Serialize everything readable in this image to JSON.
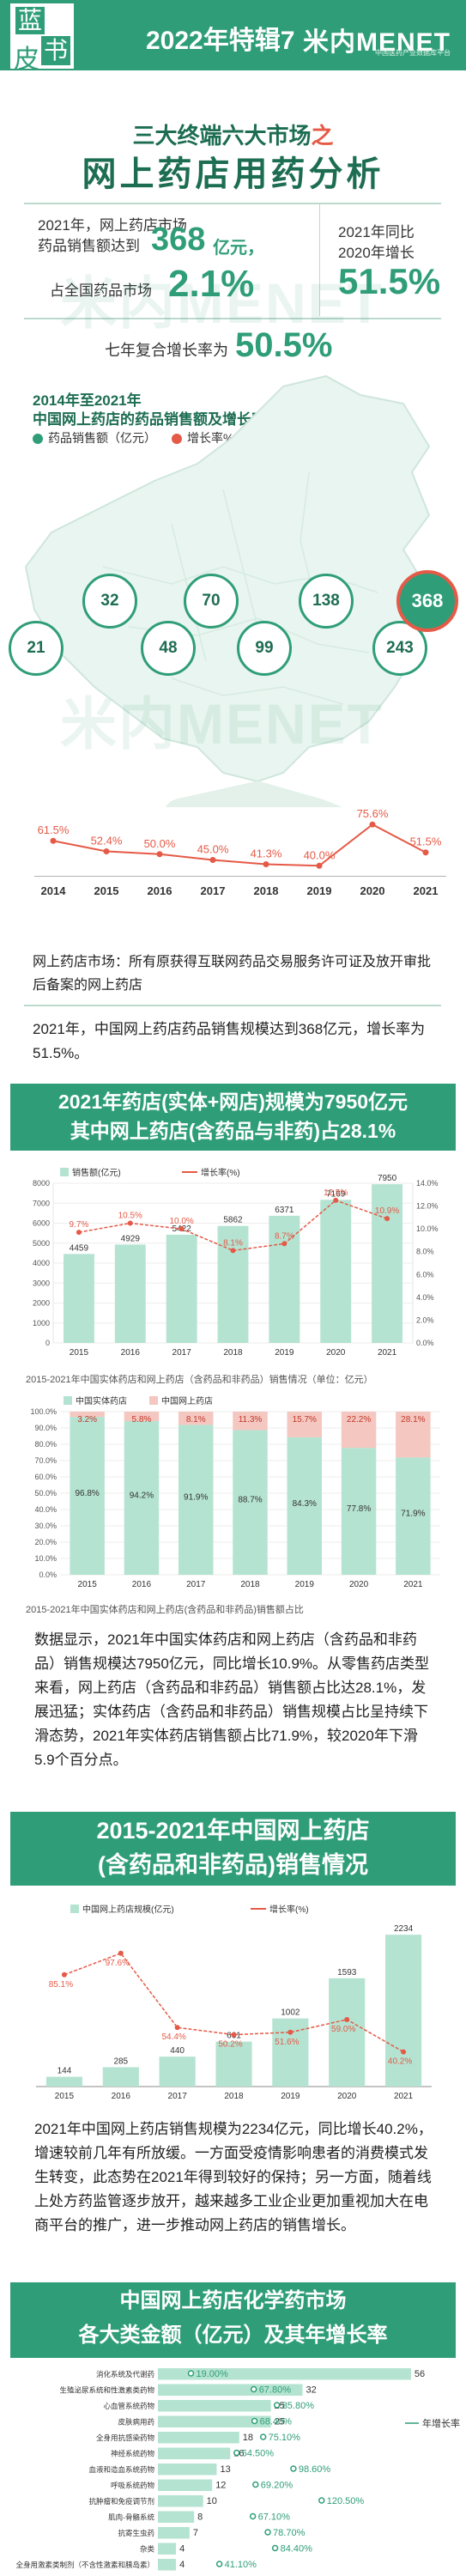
{
  "header": {
    "badge_chars": [
      "蓝",
      "皮",
      "书"
    ],
    "title": "2022年特辑7",
    "logo": "米内MENET",
    "logo_sub": "中国医药产业数据库平台"
  },
  "section1": {
    "title_prefix": "三大终端六大市场",
    "title_suffix": "之",
    "title_main": "网上药店用药分析",
    "stat1_line1": "2021年，网上药店市场",
    "stat1_line2": "药品销售额达到",
    "stat1_value": "368",
    "stat1_unit": "亿元，",
    "stat2_label": "占全国药品市场",
    "stat2_value": "2.1%",
    "stat3_line1": "2021年同比",
    "stat3_line2": "2020年增长",
    "stat3_value": "51.5%",
    "stat4_label": "七年复合增长率为",
    "stat4_value": "50.5%"
  },
  "chart_data": [
    {
      "type": "line",
      "title": "2014年至2021年 中国网上药店的药品销售额及增长率",
      "categories": [
        "2014",
        "2015",
        "2016",
        "2017",
        "2018",
        "2019",
        "2020",
        "2021"
      ],
      "series": [
        {
          "name": "药品销售额（亿元）",
          "values": [
            21,
            32,
            48,
            70,
            99,
            138,
            243,
            368
          ],
          "color": "#2f9e78"
        },
        {
          "name": "增长率%",
          "values": [
            61.5,
            52.4,
            50.0,
            45.0,
            41.3,
            40.0,
            75.6,
            51.5
          ],
          "color": "#e55a47"
        }
      ]
    },
    {
      "type": "bar",
      "title": "2015-2021年中国实体药店和网上药店（含药品和非药品）销售情况（单位：亿元）",
      "categories": [
        "2015",
        "2016",
        "2017",
        "2018",
        "2019",
        "2020",
        "2021"
      ],
      "series": [
        {
          "name": "销售额(亿元)",
          "values": [
            4459,
            4929,
            5422,
            5862,
            6371,
            7169,
            7950
          ],
          "color": "#b5e3d2"
        },
        {
          "name": "增长率(%)",
          "values": [
            9.7,
            10.5,
            10.0,
            8.1,
            8.7,
            12.5,
            10.9
          ],
          "color": "#e55a47"
        }
      ],
      "ylim": [
        0,
        8000
      ],
      "y2lim": [
        0,
        14.0
      ],
      "yticks": [
        "0",
        "1000",
        "2000",
        "3000",
        "4000",
        "5000",
        "6000",
        "7000",
        "8000"
      ],
      "y2ticks": [
        "0.0%",
        "2.0%",
        "4.0%",
        "6.0%",
        "8.0%",
        "10.0%",
        "12.0%",
        "14.0%"
      ]
    },
    {
      "type": "bar",
      "stacked": true,
      "title": "2015-2021年中国实体药店和网上药店(含药品和非药品)销售额占比",
      "categories": [
        "2015",
        "2016",
        "2017",
        "2018",
        "2019",
        "2020",
        "2021"
      ],
      "series": [
        {
          "name": "中国实体药店",
          "values": [
            96.8,
            94.2,
            91.9,
            88.7,
            84.3,
            77.8,
            71.9
          ],
          "color": "#b5e3d2"
        },
        {
          "name": "中国网上药店",
          "values": [
            3.2,
            5.8,
            8.1,
            11.3,
            15.7,
            22.2,
            28.1
          ],
          "color": "#f4c7c0"
        }
      ],
      "ylim": [
        0,
        100
      ],
      "yticks": [
        "0.0%",
        "10.0%",
        "20.0%",
        "30.0%",
        "40.0%",
        "50.0%",
        "60.0%",
        "70.0%",
        "80.0%",
        "90.0%",
        "100.0%"
      ]
    },
    {
      "type": "bar",
      "title": "2015-2021年中国网上药店（含药品和非药品）销售情况",
      "categories": [
        "2015",
        "2016",
        "2017",
        "2018",
        "2019",
        "2020",
        "2021"
      ],
      "series": [
        {
          "name": "中国网上药店规模(亿元)",
          "values": [
            144,
            285,
            440,
            661,
            1002,
            1593,
            2234
          ],
          "color": "#b5e3d2"
        },
        {
          "name": "增长率(%)",
          "values": [
            85.1,
            97.6,
            54.4,
            50.2,
            51.6,
            59.0,
            40.2
          ],
          "color": "#e55a47"
        }
      ]
    },
    {
      "type": "bar",
      "orientation": "horizontal",
      "title": "中国网上药店化学药市场各大类金额（亿元）及其年增长率",
      "categories": [
        "消化系统及代谢药",
        "生殖泌尿系统和性激素类药物",
        "心血管系统药物",
        "皮肤病用药",
        "全身用抗感染药物",
        "神经系统药物",
        "血液和造血系统药物",
        "呼吸系统药物",
        "抗肿瘤和免疫调节剂",
        "肌肉-骨骼系统",
        "抗寄生虫药",
        "杂类",
        "全身用激素类制剂（不含性激素和胰岛素）"
      ],
      "series": [
        {
          "name": "金额（亿元）",
          "values": [
            56,
            32,
            25,
            25,
            18,
            16,
            13,
            12,
            10,
            8,
            7,
            4,
            4
          ],
          "color": "#b5e3d2"
        },
        {
          "name": "年增长率",
          "values": [
            19.0,
            67.8,
            85.8,
            68.4,
            75.1,
            54.5,
            98.6,
            69.2,
            120.5,
            67.1,
            78.7,
            84.4,
            41.1
          ],
          "color": "#2f9e78"
        }
      ]
    }
  ],
  "map": {
    "title_line1": "2014年至2021年",
    "title_line2": "中国网上药店的药品销售额及增长率",
    "growth_labels": [
      "61.5%",
      "52.4%",
      "50.0%",
      "45.0%",
      "41.3%",
      "40.0%",
      "75.6%",
      "51.5%"
    ]
  },
  "notes": {
    "line1": "网上药店市场：所有原获得互联网药品交易服务许可证及放开审批后备案的网上药店",
    "para": "2021年，中国网上药店药品销售规模达到368亿元，增长率为51.5%。"
  },
  "section2": {
    "banner_line1": "2021年药店(实体+网店)规模为7950亿元",
    "banner_line2": "其中网上药店(含药品与非药)占28.1%",
    "para": "数据显示，2021年中国实体药店和网上药店（含药品和非药品）销售规模达7950亿元，同比增长10.9%。从零售药店类型来看，网上药店（含药品和非药品）销售额占比达28.1%，发展迅猛；实体药店（含药品和非药品）销售规模占比呈持续下滑态势，2021年实体药店销售额占比71.9%，较2020年下滑5.9个百分点。"
  },
  "section3": {
    "banner_line1": "2015-2021年中国网上药店",
    "banner_line2": "(含药品和非药品)销售情况",
    "para": "2021年中国网上药店销售规模为2234亿元，同比增长40.2%，增速较前几年有所放缓。一方面受疫情影响患者的消费模式发生转变，此态势在2021年得到较好的保持；另一方面，随着线上处方药监管逐步放开，越来越多工业企业更加重视加大在电商平台的推广，进一步推动网上药店的销售增长。"
  },
  "section4": {
    "banner_line1": "中国网上药店化学药市场",
    "banner_line2": "各大类金额（亿元）及其年增长率"
  },
  "watermark": "米内MENET"
}
